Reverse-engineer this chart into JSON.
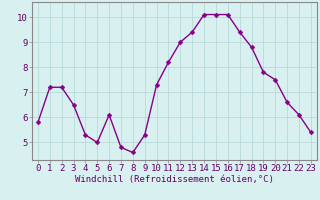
{
  "x": [
    0,
    1,
    2,
    3,
    4,
    5,
    6,
    7,
    8,
    9,
    10,
    11,
    12,
    13,
    14,
    15,
    16,
    17,
    18,
    19,
    20,
    21,
    22,
    23
  ],
  "y": [
    5.8,
    7.2,
    7.2,
    6.5,
    5.3,
    5.0,
    6.1,
    4.8,
    4.6,
    5.3,
    7.3,
    8.2,
    9.0,
    9.4,
    10.1,
    10.1,
    10.1,
    9.4,
    8.8,
    7.8,
    7.5,
    6.6,
    6.1,
    5.4
  ],
  "line_color": "#880088",
  "marker": "D",
  "marker_size": 2.5,
  "linewidth": 1.0,
  "xlabel": "Windchill (Refroidissement éolien,°C)",
  "xlabel_fontsize": 6.5,
  "background_color": "#d8f0f0",
  "grid_color": "#b8dada",
  "tick_label_fontsize": 6.5,
  "xlim": [
    -0.5,
    23.5
  ],
  "ylim": [
    4.3,
    10.6
  ],
  "yticks": [
    5,
    6,
    7,
    8,
    9,
    10
  ],
  "xticks": [
    0,
    1,
    2,
    3,
    4,
    5,
    6,
    7,
    8,
    9,
    10,
    11,
    12,
    13,
    14,
    15,
    16,
    17,
    18,
    19,
    20,
    21,
    22,
    23
  ],
  "spine_color": "#888888",
  "label_color": "#660066"
}
